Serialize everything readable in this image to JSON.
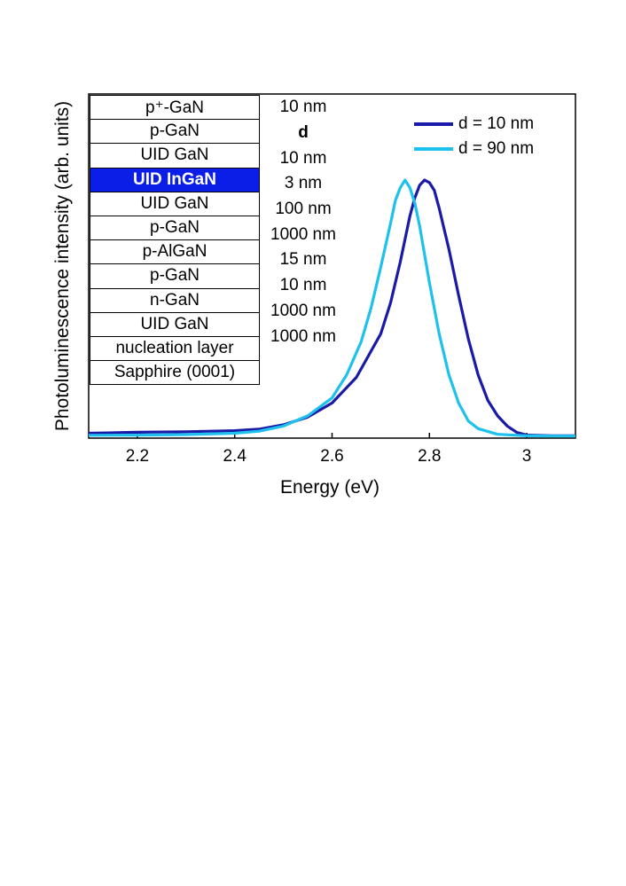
{
  "chart_data": {
    "type": "line",
    "xlabel": "Energy (eV)",
    "ylabel": "Photoluminescence intensity (arb. units)",
    "xlim": [
      2.1,
      3.1
    ],
    "ylim": [
      0,
      1.0
    ],
    "x_ticks": [
      "2.2",
      "2.4",
      "2.6",
      "2.8",
      "3"
    ],
    "x_tick_values": [
      2.2,
      2.4,
      2.6,
      2.8,
      3.0
    ],
    "series": [
      {
        "name": "d = 10 nm",
        "color": "#1a1aa8",
        "x": [
          2.1,
          2.2,
          2.3,
          2.4,
          2.45,
          2.5,
          2.55,
          2.6,
          2.65,
          2.7,
          2.72,
          2.74,
          2.76,
          2.77,
          2.78,
          2.79,
          2.8,
          2.81,
          2.82,
          2.84,
          2.86,
          2.88,
          2.9,
          2.92,
          2.94,
          2.96,
          2.98,
          3.0,
          3.05,
          3.1
        ],
        "y": [
          0.012,
          0.016,
          0.018,
          0.022,
          0.028,
          0.045,
          0.075,
          0.13,
          0.23,
          0.4,
          0.52,
          0.68,
          0.86,
          0.93,
          0.98,
          1.0,
          0.99,
          0.96,
          0.89,
          0.73,
          0.55,
          0.38,
          0.24,
          0.14,
          0.08,
          0.04,
          0.015,
          0.005,
          0.002,
          0.002
        ]
      },
      {
        "name": "d = 90 nm",
        "color": "#1ec0ee",
        "x": [
          2.1,
          2.2,
          2.3,
          2.4,
          2.45,
          2.5,
          2.55,
          2.6,
          2.63,
          2.66,
          2.68,
          2.7,
          2.72,
          2.73,
          2.74,
          2.75,
          2.76,
          2.77,
          2.78,
          2.8,
          2.82,
          2.84,
          2.86,
          2.88,
          2.9,
          2.94,
          3.0,
          3.05,
          3.1
        ],
        "y": [
          0.004,
          0.005,
          0.007,
          0.012,
          0.02,
          0.04,
          0.08,
          0.15,
          0.24,
          0.37,
          0.5,
          0.66,
          0.83,
          0.92,
          0.97,
          1.0,
          0.97,
          0.91,
          0.82,
          0.6,
          0.4,
          0.24,
          0.13,
          0.06,
          0.03,
          0.008,
          0.002,
          0.001,
          0.001
        ]
      }
    ]
  },
  "layer_stack": {
    "layers": [
      "p⁺-GaN",
      "p-GaN",
      "UID GaN",
      "UID InGaN",
      "UID GaN",
      "p-GaN",
      "p-AlGaN",
      "p-GaN",
      "n-GaN",
      "UID GaN",
      "nucleation layer",
      "Sapphire (0001)"
    ],
    "highlight_index": 3,
    "highlight_color": "#0a1ee8",
    "thicknesses": [
      "10 nm",
      "d",
      "10 nm",
      "3 nm",
      "100 nm",
      "1000 nm",
      "15 nm",
      "10 nm",
      "1000 nm",
      "1000 nm",
      "",
      ""
    ]
  },
  "legend": {
    "items": [
      {
        "label": "d = 10 nm",
        "color": "#1a1aa8"
      },
      {
        "label": "d = 90 nm",
        "color": "#1ec0ee"
      }
    ]
  }
}
